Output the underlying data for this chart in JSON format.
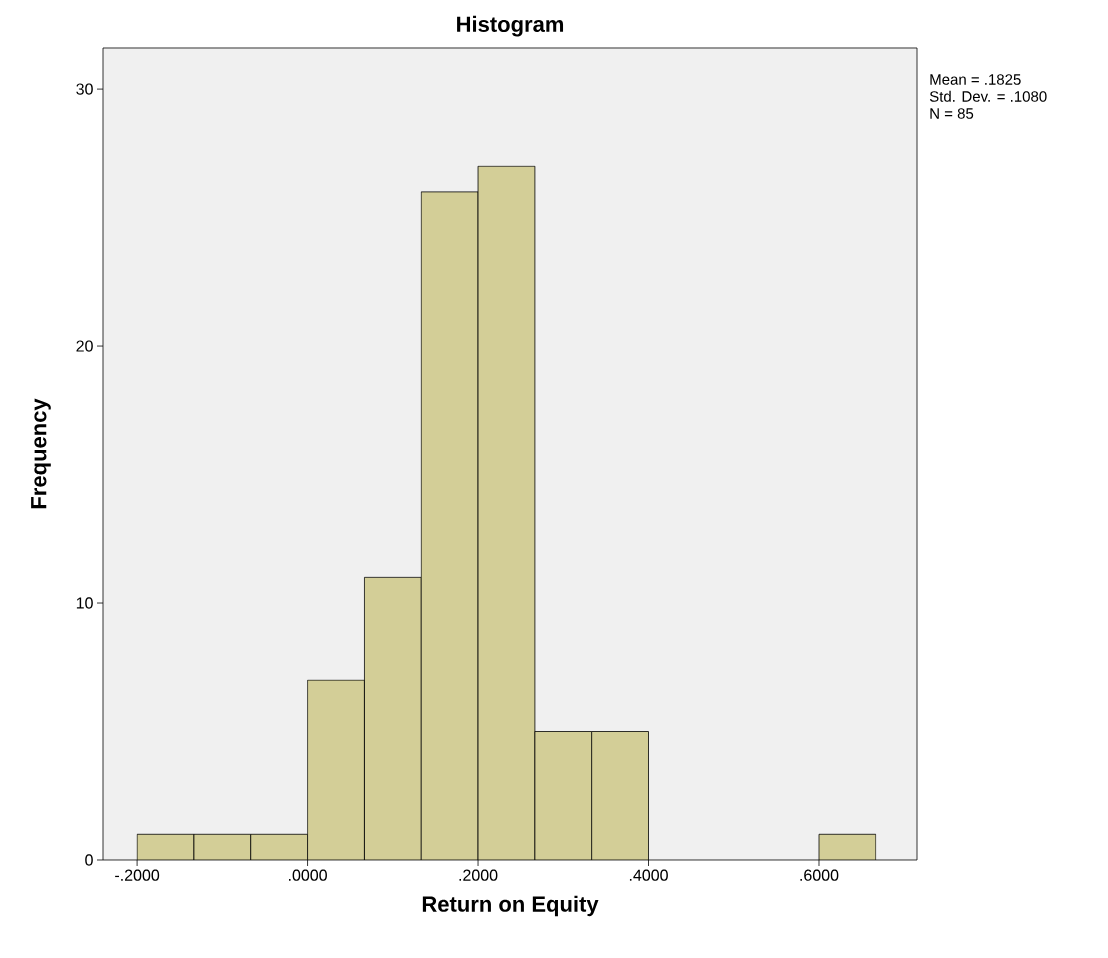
{
  "chart_data": {
    "type": "histogram",
    "title": "Histogram",
    "xlabel": "Return on Equity",
    "ylabel": "Frequency",
    "bins": [
      -0.2,
      -0.1333,
      -0.0667,
      0,
      0.0667,
      0.1333,
      0.2,
      0.2667,
      0.3333,
      0.4,
      0.4667,
      0.5333,
      0.6,
      0.6667
    ],
    "values": [
      1,
      1,
      1,
      7,
      11,
      26,
      27,
      5,
      5,
      0,
      0,
      0,
      1
    ],
    "color": "#d3ce97",
    "xlim": [
      -0.24,
      0.715
    ],
    "ylim": [
      0,
      31.6
    ],
    "xticks": [
      {
        "value": -0.2,
        "label": "-.2000"
      },
      {
        "value": 0,
        "label": ".0000"
      },
      {
        "value": 0.2,
        "label": ".2000"
      },
      {
        "value": 0.4,
        "label": ".4000"
      },
      {
        "value": 0.6,
        "label": ".6000"
      }
    ],
    "yticks": [
      0,
      10,
      20,
      30
    ],
    "grid": false,
    "annotations": [
      "Mean = .1825",
      "Std. Dev. = .1080",
      "N = 85"
    ]
  }
}
